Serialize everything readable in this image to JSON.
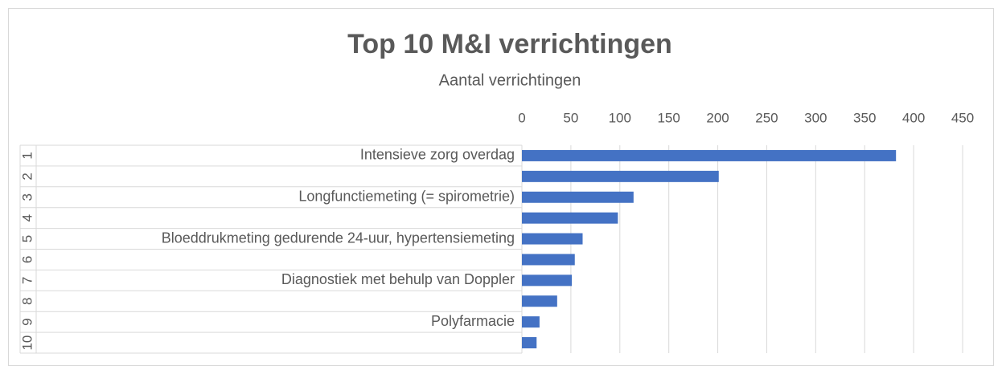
{
  "chart_data": {
    "type": "bar",
    "orientation": "horizontal",
    "title": "Top 10 M&I verrichtingen",
    "subtitle": "Aantal verrichtingen",
    "ranks": [
      1,
      2,
      3,
      4,
      5,
      6,
      7,
      8,
      9,
      10
    ],
    "categories": [
      "Intensieve zorg overdag",
      null,
      "Longfunctiemeting (= spirometrie)",
      null,
      "Bloeddrukmeting gedurende 24-uur, hypertensiemeting",
      null,
      "Diagnostiek met behulp van Doppler",
      null,
      "Polyfarmacie",
      null
    ],
    "values": [
      382,
      201,
      114,
      98,
      62,
      54,
      51,
      36,
      18,
      15
    ],
    "color": "#4472c4",
    "xlim": [
      0,
      450
    ],
    "xticks": [
      0,
      50,
      100,
      150,
      200,
      250,
      300,
      350,
      400,
      450
    ],
    "grid": true
  }
}
